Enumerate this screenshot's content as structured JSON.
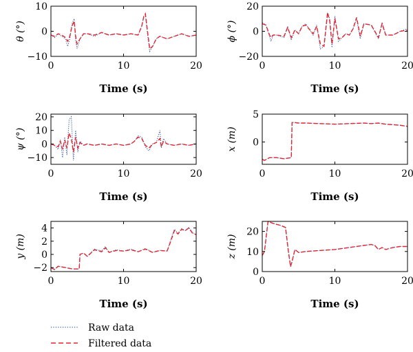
{
  "colors": {
    "raw": "#3a5aa8",
    "filtered": "#e8202a",
    "axis": "#000000"
  },
  "legend": {
    "raw_label": "Raw data",
    "filtered_label": "Filtered data",
    "placement": "bottom-left"
  },
  "chart_data": [
    {
      "type": "line",
      "xlabel": "Time (s)",
      "ylabel": "θ (°)",
      "xlim": [
        0,
        20
      ],
      "ylim": [
        -10,
        10
      ],
      "xticks": [
        0,
        10,
        20
      ],
      "yticks": [
        -10,
        0,
        10
      ],
      "series": [
        {
          "name": "Raw data",
          "x": [
            0,
            0.5,
            1,
            1.5,
            2,
            2.3,
            2.6,
            2.9,
            3.2,
            3.4,
            3.6,
            4,
            4.5,
            5,
            6,
            7,
            8,
            9,
            10,
            11,
            12,
            12.5,
            12.8,
            13,
            13.3,
            13.6,
            14,
            14.5,
            15,
            16,
            17,
            18,
            19,
            20
          ],
          "y": [
            -1.5,
            -2.5,
            -1,
            -2,
            -3,
            -6,
            -3,
            3,
            5,
            -4,
            -7,
            -3,
            -1,
            -1,
            -2,
            -0.5,
            -1.5,
            -1,
            -1.5,
            -1,
            -1.5,
            2,
            6,
            6.5,
            -1,
            -8,
            -6,
            -3,
            -2,
            -3,
            -2,
            -1,
            -2,
            -1.5
          ]
        },
        {
          "name": "Filtered data",
          "x": [
            0,
            0.5,
            1,
            1.5,
            2,
            2.3,
            2.6,
            2.9,
            3.2,
            3.4,
            3.6,
            4,
            4.5,
            5,
            6,
            7,
            8,
            9,
            10,
            11,
            12,
            12.5,
            12.8,
            13,
            13.3,
            13.6,
            14,
            14.5,
            15,
            16,
            17,
            18,
            19,
            20
          ],
          "y": [
            -1.5,
            -2,
            -1,
            -1.5,
            -2.5,
            -4,
            -2,
            2,
            4,
            -2,
            -5,
            -3,
            -1,
            -1,
            -1.5,
            -0.5,
            -1.5,
            -1,
            -1.5,
            -1,
            -1.5,
            2,
            6,
            7,
            0,
            -7,
            -6,
            -3,
            -2,
            -3,
            -2,
            -1,
            -2,
            -1.5
          ]
        }
      ]
    },
    {
      "type": "line",
      "xlabel": "Time (s)",
      "ylabel": "ϕ (°)",
      "xlim": [
        0,
        20
      ],
      "ylim": [
        -20,
        20
      ],
      "xticks": [
        0,
        10,
        20
      ],
      "yticks": [
        -20,
        0,
        20
      ],
      "series": [
        {
          "name": "Raw data",
          "x": [
            0,
            0.5,
            1,
            1.2,
            1.5,
            2,
            3,
            3.5,
            4,
            4.5,
            5,
            5.5,
            6,
            7,
            7.5,
            8,
            8.5,
            9,
            9.3,
            9.6,
            10,
            10.5,
            11,
            11.5,
            12,
            12.5,
            13,
            13.5,
            14,
            15,
            16,
            16.5,
            17,
            18,
            19,
            20
          ],
          "y": [
            7,
            5,
            -4,
            -8,
            -3,
            -3,
            -5,
            4,
            -7,
            1,
            -2,
            4,
            6,
            -3,
            5,
            -14,
            -12,
            14,
            10,
            -13,
            12,
            -8,
            -5,
            -2,
            -3,
            2,
            10,
            -6,
            6,
            5,
            -6,
            7,
            -3,
            -3,
            0,
            2
          ]
        },
        {
          "name": "Filtered data",
          "x": [
            0,
            0.5,
            1,
            1.2,
            1.5,
            2,
            3,
            3.5,
            4,
            4.5,
            5,
            5.5,
            6,
            7,
            7.5,
            8,
            8.5,
            9,
            9.3,
            9.6,
            10,
            10.5,
            11,
            11.5,
            12,
            12.5,
            13,
            13.5,
            14,
            15,
            16,
            16.5,
            17,
            18,
            19,
            20
          ],
          "y": [
            6,
            5,
            -3,
            -5,
            -3,
            -3,
            -4,
            3,
            -5,
            1,
            -2,
            4,
            5,
            -2,
            4,
            -10,
            -12,
            15,
            8,
            -10,
            10,
            -6,
            -5,
            -2,
            -3,
            2,
            11,
            -4,
            6,
            5,
            -5,
            6,
            -3,
            -3,
            0,
            1
          ]
        }
      ]
    },
    {
      "type": "line",
      "xlabel": "Time (s)",
      "ylabel": "ψ (°)",
      "xlim": [
        0,
        20
      ],
      "ylim": [
        -15,
        22
      ],
      "xticks": [
        0,
        10,
        20
      ],
      "yticks": [
        -10,
        0,
        10,
        20
      ],
      "series": [
        {
          "name": "Raw data",
          "x": [
            0,
            0.5,
            1,
            1.3,
            1.6,
            1.9,
            2.2,
            2.5,
            2.8,
            3.1,
            3.4,
            3.7,
            4,
            4.5,
            5,
            6,
            7,
            8,
            9,
            10,
            11,
            11.5,
            12,
            12.5,
            13,
            13.5,
            14,
            14.5,
            15,
            15.2,
            15.5,
            16,
            17,
            18,
            19,
            20
          ],
          "y": [
            0,
            -1,
            -4,
            3,
            -10,
            5,
            -8,
            18,
            20,
            -12,
            10,
            -6,
            2,
            -1,
            0,
            -1,
            0,
            -1,
            0,
            -1,
            0,
            2,
            6,
            5,
            -2,
            -5,
            0,
            1,
            10,
            -3,
            4,
            0,
            -1,
            0,
            -1,
            0
          ]
        },
        {
          "name": "Filtered data",
          "x": [
            0,
            0.5,
            1,
            1.3,
            1.6,
            1.9,
            2.2,
            2.5,
            2.8,
            3.1,
            3.4,
            3.7,
            4,
            4.5,
            5,
            6,
            7,
            8,
            9,
            10,
            11,
            11.5,
            12,
            12.5,
            13,
            13.5,
            14,
            14.5,
            15,
            15.2,
            15.5,
            16,
            17,
            18,
            19,
            20
          ],
          "y": [
            0,
            -1,
            -2,
            2,
            -4,
            3,
            -3,
            8,
            4,
            -6,
            5,
            -3,
            1,
            -1,
            0,
            -1,
            0,
            -1,
            0,
            -1,
            0,
            2,
            5,
            4,
            -1,
            -3,
            0,
            1,
            4,
            -2,
            2,
            0,
            -1,
            0,
            -1,
            0
          ]
        }
      ]
    },
    {
      "type": "line",
      "xlabel": "Time (s)",
      "ylabel": "x (m)",
      "xlim": [
        0,
        20
      ],
      "ylim": [
        -4,
        5
      ],
      "xticks": [
        0,
        10,
        20
      ],
      "yticks": [
        0,
        5
      ],
      "series": [
        {
          "name": "Raw data",
          "x": [
            0,
            0.3,
            1,
            2,
            3,
            4,
            4.1,
            4.4,
            5,
            6,
            8,
            10,
            12,
            14,
            15,
            16,
            17,
            18,
            19,
            20
          ],
          "y": [
            -3.1,
            -3.3,
            -2.8,
            -2.8,
            -3,
            -2.8,
            3.5,
            3.5,
            3.4,
            3.4,
            3.3,
            3.2,
            3.3,
            3.4,
            3.3,
            3.4,
            3.2,
            3.1,
            3.0,
            2.8
          ]
        },
        {
          "name": "Filtered data",
          "x": [
            0,
            0.3,
            1,
            2,
            3,
            4,
            4.1,
            4.4,
            5,
            6,
            8,
            10,
            12,
            14,
            15,
            16,
            17,
            18,
            19,
            20
          ],
          "y": [
            -3.1,
            -3.3,
            -2.8,
            -2.8,
            -3,
            -2.8,
            3.5,
            3.5,
            3.4,
            3.4,
            3.3,
            3.2,
            3.3,
            3.4,
            3.3,
            3.4,
            3.2,
            3.1,
            3.0,
            2.8
          ]
        }
      ]
    },
    {
      "type": "line",
      "xlabel": "Time (s)",
      "ylabel": "y (m)",
      "xlim": [
        0,
        20
      ],
      "ylim": [
        -2.6,
        5
      ],
      "xticks": [
        0,
        10,
        20
      ],
      "yticks": [
        -2,
        0,
        2,
        4
      ],
      "series": [
        {
          "name": "Raw data",
          "x": [
            0,
            0.5,
            1,
            2,
            3,
            3.9,
            4,
            4.5,
            5,
            6,
            7,
            7.5,
            8,
            9,
            10,
            11,
            12,
            13,
            14,
            15,
            16,
            16.5,
            17,
            17.5,
            18,
            18.5,
            19,
            19.5,
            20
          ],
          "y": [
            -2,
            -2.3,
            -1.8,
            -2,
            -2.2,
            -2.2,
            0,
            0.2,
            -0.3,
            0.8,
            0.5,
            1.2,
            0.3,
            0.7,
            0.5,
            0.8,
            0.4,
            0.9,
            0.3,
            0.6,
            0.5,
            2.2,
            3.8,
            3.2,
            3.9,
            3.6,
            4.1,
            3.3,
            3.0
          ]
        },
        {
          "name": "Filtered data",
          "x": [
            0,
            0.5,
            1,
            2,
            3,
            3.9,
            4,
            4.5,
            5,
            6,
            7,
            7.5,
            8,
            9,
            10,
            11,
            12,
            13,
            14,
            15,
            16,
            16.5,
            17,
            17.5,
            18,
            18.5,
            19,
            19.5,
            20
          ],
          "y": [
            -2,
            -2.3,
            -1.8,
            -2,
            -2.2,
            -2.2,
            0,
            0.2,
            -0.3,
            0.7,
            0.4,
            1.0,
            0.3,
            0.6,
            0.5,
            0.7,
            0.4,
            0.8,
            0.3,
            0.6,
            0.5,
            2.0,
            3.6,
            3.1,
            3.8,
            3.6,
            4.0,
            3.2,
            3.0
          ]
        }
      ]
    },
    {
      "type": "line",
      "xlabel": "Time (s)",
      "ylabel": "z (m)",
      "xlim": [
        0,
        20
      ],
      "ylim": [
        0,
        25
      ],
      "xticks": [
        0,
        10,
        20
      ],
      "yticks": [
        0,
        10,
        20
      ],
      "series": [
        {
          "name": "Raw data",
          "x": [
            0,
            0.3,
            0.8,
            1.5,
            2.5,
            3.2,
            3.6,
            3.9,
            4.1,
            4.5,
            5,
            6,
            8,
            10,
            12,
            14,
            15,
            15.5,
            16,
            16.5,
            17,
            18,
            19,
            20
          ],
          "y": [
            8,
            10,
            25,
            24,
            23,
            22,
            10,
            2.5,
            5,
            11,
            9.5,
            10,
            10.5,
            11,
            12,
            13,
            13.5,
            13,
            11,
            12,
            11,
            12,
            12.5,
            12.5
          ]
        },
        {
          "name": "Filtered data",
          "x": [
            0,
            0.3,
            0.8,
            1.5,
            2.5,
            3.2,
            3.6,
            3.9,
            4.1,
            4.5,
            5,
            6,
            8,
            10,
            12,
            14,
            15,
            15.5,
            16,
            16.5,
            17,
            18,
            19,
            20
          ],
          "y": [
            8,
            10,
            25,
            24,
            23,
            22,
            10,
            2.5,
            5,
            11,
            9.5,
            10,
            10.5,
            11,
            12,
            13,
            13.5,
            13,
            11,
            12,
            11,
            12,
            12.5,
            12.5
          ]
        }
      ]
    }
  ]
}
